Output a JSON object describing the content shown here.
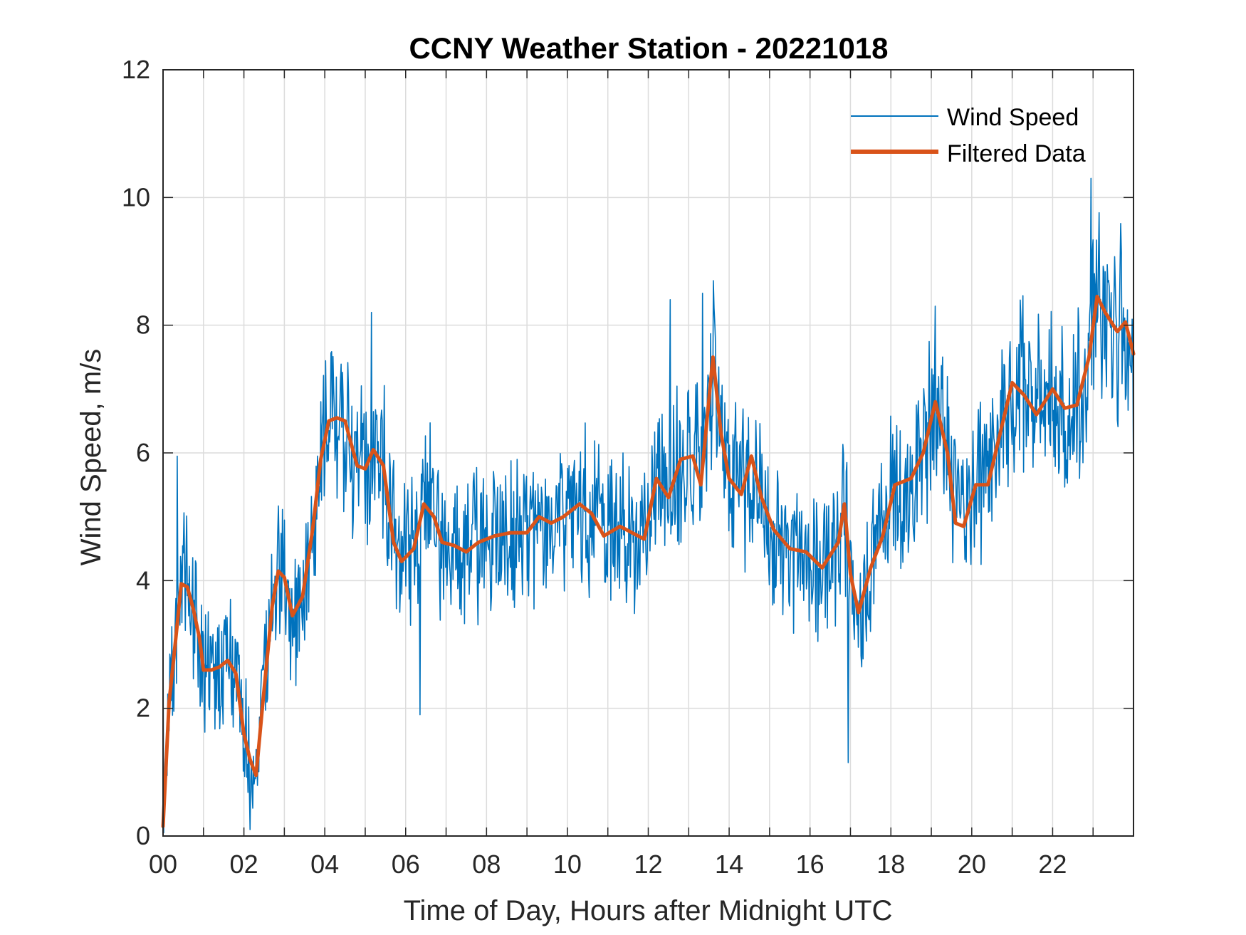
{
  "chart_data": {
    "type": "line",
    "title": "CCNY Weather Station - 20221018",
    "xlabel": "Time of Day, Hours after Midnight UTC",
    "ylabel": "Wind Speed, m/s",
    "xlim": [
      0,
      24
    ],
    "ylim": [
      0,
      12
    ],
    "x_ticks": [
      0,
      2,
      4,
      6,
      8,
      10,
      12,
      14,
      16,
      18,
      20,
      22
    ],
    "x_tick_labels": [
      "00",
      "02",
      "04",
      "06",
      "08",
      "10",
      "12",
      "14",
      "16",
      "18",
      "20",
      "22"
    ],
    "y_ticks": [
      0,
      2,
      4,
      6,
      8,
      10,
      12
    ],
    "y_tick_labels": [
      "0",
      "2",
      "4",
      "6",
      "8",
      "10",
      "12"
    ],
    "grid": true,
    "legend_position": "top-right",
    "series": [
      {
        "name": "Wind Speed",
        "color": "#0072BD",
        "noise_amplitude": 1.1,
        "extremes": [
          {
            "x": 0.35,
            "y": 5.95
          },
          {
            "x": 2.15,
            "y": 0.1
          },
          {
            "x": 5.15,
            "y": 8.2
          },
          {
            "x": 6.35,
            "y": 1.9
          },
          {
            "x": 12.55,
            "y": 8.4
          },
          {
            "x": 13.35,
            "y": 8.5
          },
          {
            "x": 16.95,
            "y": 1.15
          },
          {
            "x": 22.95,
            "y": 10.3
          }
        ]
      },
      {
        "name": "Filtered Data",
        "color": "#D95319",
        "x": [
          0,
          0.15,
          0.3,
          0.45,
          0.6,
          0.75,
          0.9,
          1.0,
          1.2,
          1.4,
          1.6,
          1.8,
          2.0,
          2.15,
          2.3,
          2.5,
          2.7,
          2.85,
          3.0,
          3.2,
          3.45,
          3.7,
          3.9,
          4.1,
          4.3,
          4.5,
          4.8,
          5.0,
          5.2,
          5.45,
          5.7,
          5.9,
          6.2,
          6.45,
          6.7,
          6.9,
          7.2,
          7.5,
          7.8,
          8.2,
          8.6,
          9.0,
          9.3,
          9.6,
          9.9,
          10.3,
          10.6,
          10.9,
          11.3,
          11.6,
          11.9,
          12.2,
          12.5,
          12.8,
          13.1,
          13.3,
          13.6,
          13.8,
          14.0,
          14.3,
          14.55,
          14.8,
          15.1,
          15.5,
          15.9,
          16.3,
          16.7,
          16.85,
          17.0,
          17.2,
          17.5,
          17.8,
          18.1,
          18.5,
          18.8,
          19.1,
          19.4,
          19.6,
          19.8,
          20.1,
          20.4,
          20.7,
          21.0,
          21.3,
          21.6,
          22.0,
          22.3,
          22.6,
          22.9,
          23.1,
          23.3,
          23.6,
          23.8,
          24.0
        ],
        "y": [
          0.15,
          2.1,
          3.0,
          3.95,
          3.9,
          3.55,
          3.1,
          2.6,
          2.6,
          2.65,
          2.75,
          2.55,
          1.6,
          1.2,
          0.95,
          2.3,
          3.6,
          4.15,
          4.05,
          3.45,
          3.75,
          4.8,
          5.9,
          6.5,
          6.55,
          6.5,
          5.8,
          5.75,
          6.05,
          5.8,
          4.6,
          4.3,
          4.5,
          5.2,
          5.0,
          4.6,
          4.55,
          4.45,
          4.6,
          4.7,
          4.75,
          4.75,
          5.0,
          4.9,
          5.0,
          5.2,
          5.05,
          4.7,
          4.85,
          4.75,
          4.65,
          5.6,
          5.3,
          5.9,
          5.95,
          5.5,
          7.5,
          6.3,
          5.6,
          5.35,
          5.95,
          5.3,
          4.8,
          4.5,
          4.45,
          4.2,
          4.6,
          5.2,
          4.1,
          3.5,
          4.2,
          4.7,
          5.5,
          5.6,
          6.0,
          6.8,
          6.0,
          4.9,
          4.85,
          5.5,
          5.5,
          6.3,
          7.1,
          6.9,
          6.6,
          7.0,
          6.7,
          6.75,
          7.5,
          8.45,
          8.2,
          7.9,
          8.05,
          7.55
        ]
      }
    ]
  }
}
